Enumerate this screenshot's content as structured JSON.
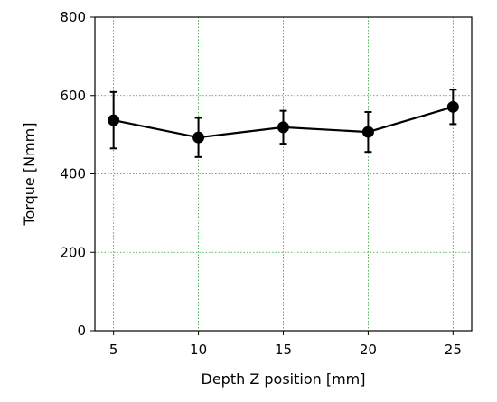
{
  "chart_data": {
    "type": "line",
    "title": "",
    "xlabel": "Depth Z position [mm]",
    "ylabel": "Torque [Nmm]",
    "x": [
      5,
      10,
      15,
      20,
      25
    ],
    "xticks": [
      "5",
      "10",
      "15",
      "20",
      "25"
    ],
    "yticks": [
      "0",
      "200",
      "400",
      "600",
      "800"
    ],
    "xlim": [
      3.9,
      26.1
    ],
    "ylim": [
      0,
      800
    ],
    "grid": true,
    "legend": "none",
    "series": [
      {
        "values": [
          537,
          493,
          519,
          507,
          571
        ],
        "error": [
          72,
          50,
          42,
          51,
          44
        ]
      }
    ],
    "colors": {
      "line": "#000000",
      "grid": "#2ca02c",
      "axis": "#000000"
    }
  }
}
